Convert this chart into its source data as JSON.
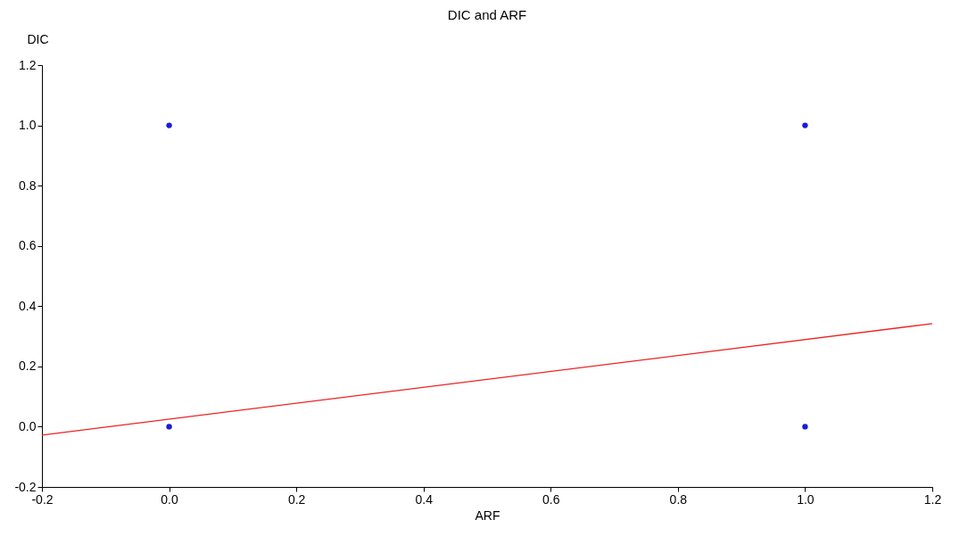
{
  "chart_data": {
    "type": "scatter",
    "title": "DIC and ARF",
    "xlabel": "ARF",
    "ylabel": "DIC",
    "xlim": [
      -0.2,
      1.2
    ],
    "ylim": [
      -0.2,
      1.2
    ],
    "xticks": [
      -0.2,
      {
        "value": 0,
        "label": "0.0"
      },
      0.2,
      0.4,
      0.6,
      0.8,
      {
        "value": 1,
        "label": "1.0"
      },
      1.2
    ],
    "yticks": [
      -0.2,
      {
        "value": 0,
        "label": "0.0"
      },
      0.2,
      0.4,
      0.6,
      0.8,
      {
        "value": 1,
        "label": "1.0"
      },
      1.2
    ],
    "grid": false,
    "series": [
      {
        "color": "#1a1adb",
        "marker": "circle",
        "x": [
          0,
          0,
          1,
          1
        ],
        "values": [
          0,
          1,
          0,
          1
        ]
      },
      {
        "type": "line",
        "color": "#ee2222",
        "x": [
          -0.2,
          1.2
        ],
        "values": [
          -0.028,
          0.342
        ],
        "line_style": "solid"
      }
    ]
  }
}
